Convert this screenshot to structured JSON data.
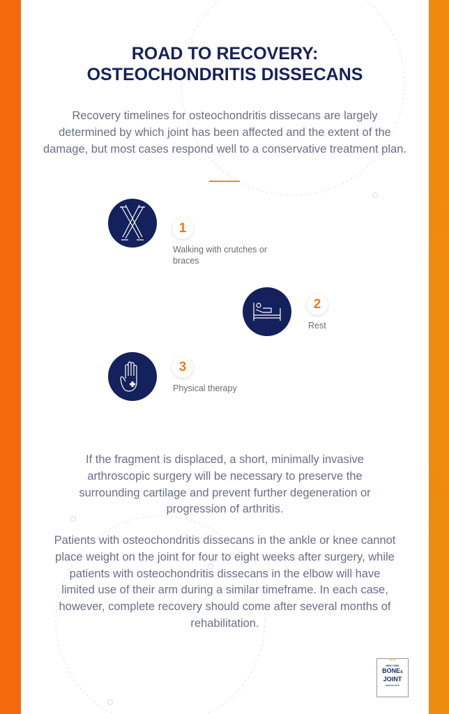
{
  "title_line1": "ROAD TO RECOVERY:",
  "title_line2": "OSTEOCHONDRITIS DISSECANS",
  "intro": "Recovery timelines for osteochondritis dissecans are largely determined by which joint has been affected and the extent of the damage, but most cases respond well to a conservative treatment plan.",
  "steps": [
    {
      "number": "1",
      "label": "Walking with crutches or braces",
      "icon": "crutches-icon"
    },
    {
      "number": "2",
      "label": "Rest",
      "icon": "bed-icon"
    },
    {
      "number": "3",
      "label": "Physical therapy",
      "icon": "hand-plus-icon"
    }
  ],
  "paragraph2": "If the fragment is displaced, a short, minimally invasive arthroscopic surgery will be necessary to preserve the surrounding cartilage and prevent further degeneration or progression of arthritis.",
  "paragraph3": "Patients with osteochondritis dissecans in the ankle or knee cannot place weight on the joint for four to eight weeks after surgery, while patients with osteochondritis dissecans in the elbow will have limited use of their arm during a similar timeframe. In each case, however, complete recovery should come after several months of rehabilitation.",
  "logo": {
    "top": "NEW YORK",
    "line1": "BONE",
    "amp": "&",
    "line2": "JOINT",
    "bottom": "SPECIALISTS"
  },
  "colors": {
    "navy": "#14215c",
    "orange": "#f56a0c",
    "text": "#6a6f85"
  }
}
